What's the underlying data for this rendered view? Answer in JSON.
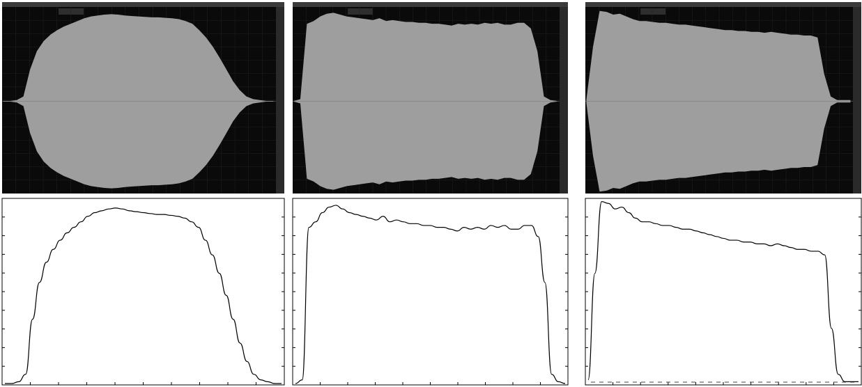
{
  "chart_data": [
    {
      "type": "line",
      "ylim": [
        0,
        1
      ],
      "color": "#000000",
      "values": [
        0,
        0,
        0.01,
        0.05,
        0.35,
        0.55,
        0.66,
        0.73,
        0.78,
        0.82,
        0.85,
        0.88,
        0.91,
        0.93,
        0.94,
        0.95,
        0.955,
        0.95,
        0.94,
        0.935,
        0.93,
        0.925,
        0.92,
        0.92,
        0.915,
        0.91,
        0.9,
        0.88,
        0.85,
        0.78,
        0.7,
        0.6,
        0.48,
        0.35,
        0.22,
        0.12,
        0.05,
        0.02,
        0.01,
        0,
        0
      ]
    },
    {
      "type": "line",
      "ylim": [
        0,
        1
      ],
      "color": "#000000",
      "values": [
        0,
        0.02,
        0.85,
        0.88,
        0.93,
        0.96,
        0.97,
        0.95,
        0.93,
        0.92,
        0.91,
        0.9,
        0.89,
        0.91,
        0.88,
        0.89,
        0.88,
        0.87,
        0.87,
        0.86,
        0.86,
        0.85,
        0.85,
        0.84,
        0.83,
        0.85,
        0.84,
        0.85,
        0.84,
        0.86,
        0.85,
        0.86,
        0.84,
        0.84,
        0.86,
        0.86,
        0.8,
        0.55,
        0.05,
        0.01,
        0
      ]
    },
    {
      "type": "line",
      "ylim": [
        0,
        1
      ],
      "color": "#000000",
      "values": [
        0.02,
        0.6,
        0.99,
        0.98,
        0.95,
        0.96,
        0.93,
        0.9,
        0.88,
        0.88,
        0.87,
        0.86,
        0.86,
        0.85,
        0.84,
        0.84,
        0.83,
        0.82,
        0.81,
        0.8,
        0.79,
        0.78,
        0.78,
        0.77,
        0.77,
        0.76,
        0.76,
        0.75,
        0.76,
        0.75,
        0.74,
        0.73,
        0.73,
        0.72,
        0.72,
        0.7,
        0.3,
        0.05,
        0.01,
        0.01,
        0.01
      ]
    }
  ]
}
